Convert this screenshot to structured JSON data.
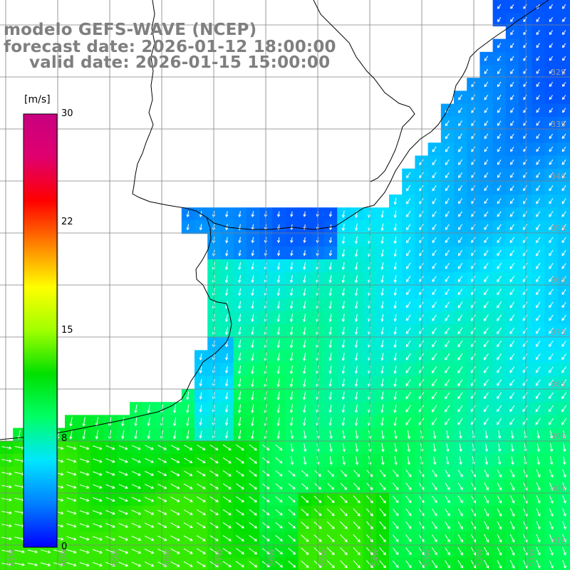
{
  "title": {
    "line1": "modelo GEFS-WAVE (NCEP)",
    "line2": "forecast date: 2026-01-12 18:00:00",
    "line3": "valid date: 2026-01-15 15:00:00"
  },
  "colorbar": {
    "unit": "[m/s]",
    "ticks": [
      "30",
      "22",
      "15",
      "8",
      "0"
    ],
    "tick_values": [
      30,
      22,
      15,
      8,
      0
    ],
    "min": 0,
    "max": 30,
    "colors": [
      "#0000ff",
      "#0080ff",
      "#00e6ff",
      "#00ff66",
      "#00e000",
      "#a0ff00",
      "#ffff00",
      "#ff8000",
      "#ff0000",
      "#e0006e",
      "#c80080"
    ]
  },
  "map": {
    "background": "#ffffff",
    "land_color": "#ffffff",
    "coastline_color": "#000000",
    "grid_color": "#808080",
    "arrow_color": "#ffffff",
    "field": "wind speed and direction",
    "latitude_labels": [
      "32S",
      "33S",
      "34S",
      "35S",
      "36S",
      "37S",
      "38S",
      "39S",
      "40S",
      "41S",
      "42S"
    ],
    "longitude_labels": [
      "61W",
      "60W",
      "59W",
      "58W",
      "57W",
      "56W",
      "55W",
      "54W",
      "53W",
      "52W",
      "51W"
    ]
  }
}
